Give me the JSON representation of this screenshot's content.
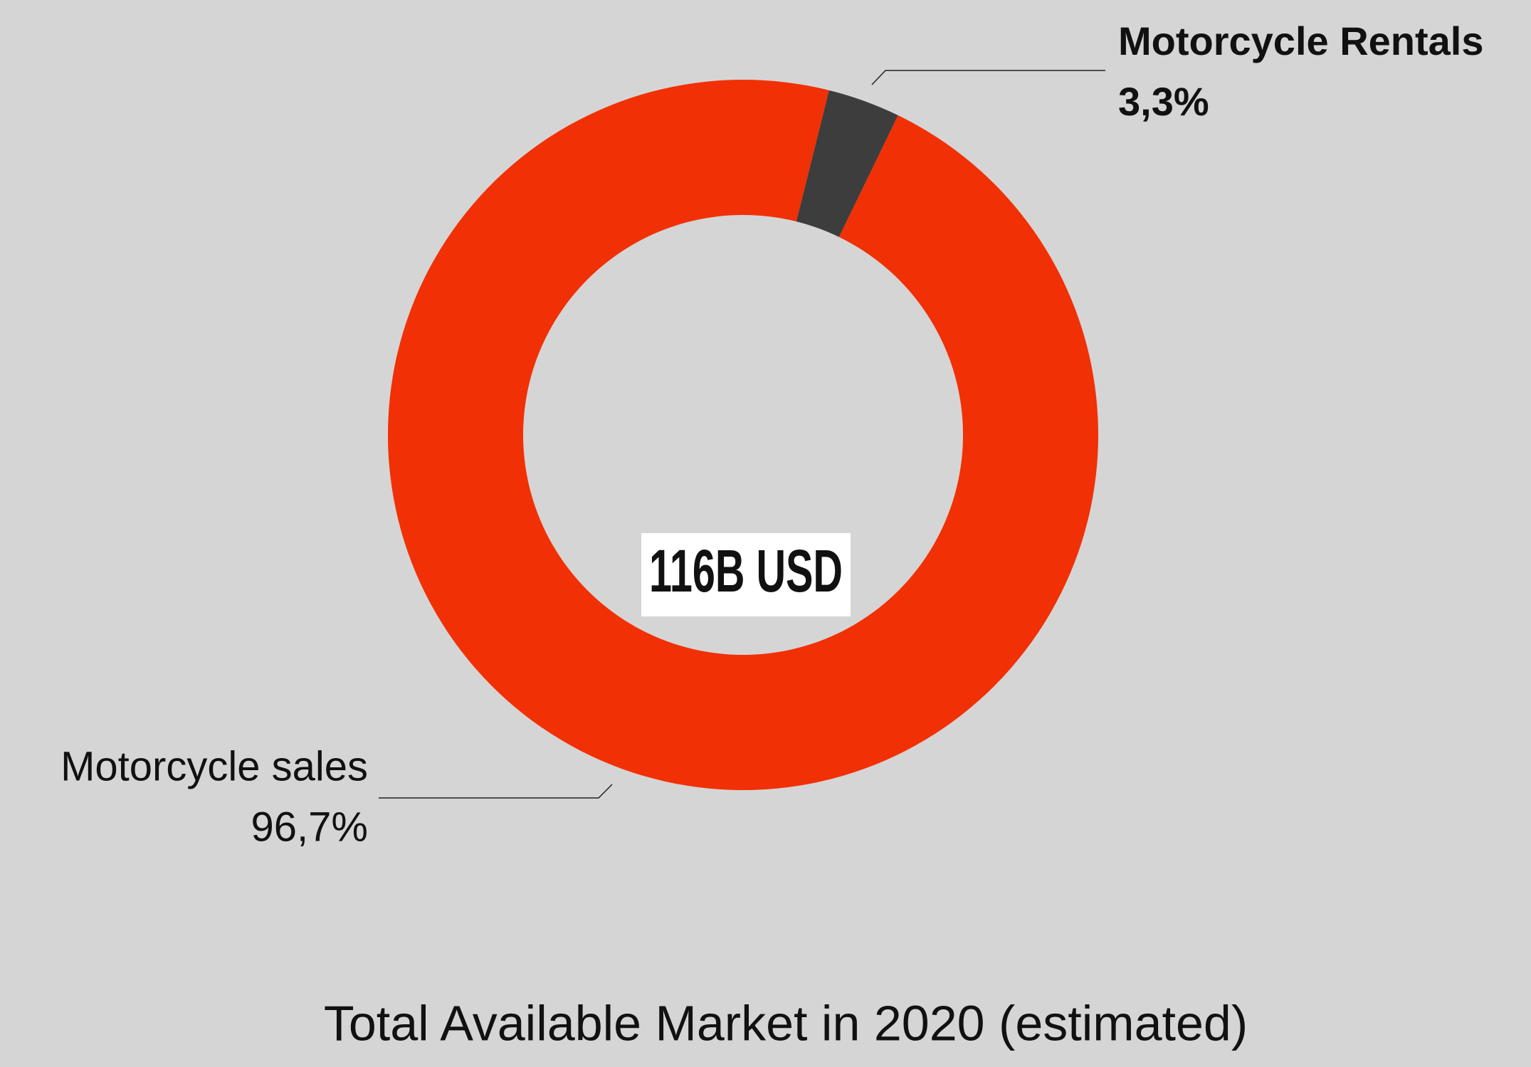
{
  "chart_data": {
    "type": "donut",
    "title": "Total Available Market in 2020 (estimated)",
    "center_label": "116B USD",
    "categories": [
      "Motorcycle Rentals",
      "Motorcycle sales"
    ],
    "values": [
      3.3,
      96.7
    ],
    "value_labels": [
      "3,3%",
      "96,7%"
    ],
    "colors": [
      "#3d3d3d",
      "#f23005"
    ]
  }
}
